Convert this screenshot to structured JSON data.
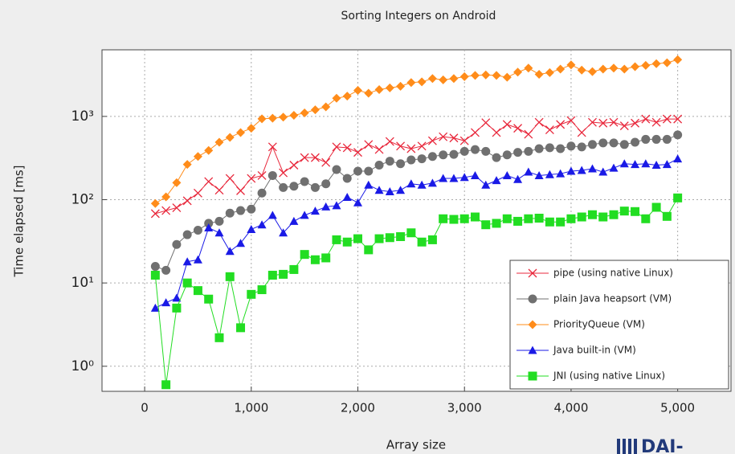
{
  "chart_data": {
    "type": "line",
    "title": "Sorting Integers on Android",
    "xlabel": "Array size",
    "ylabel": "Time elapsed [ms]",
    "log_y": true,
    "grid": true,
    "legend": "lower right",
    "logo": "DAI-",
    "x": [
      100,
      200,
      300,
      400,
      500,
      600,
      700,
      800,
      900,
      1000,
      1100,
      1200,
      1300,
      1400,
      1500,
      1600,
      1700,
      1800,
      1900,
      2000,
      2100,
      2200,
      2300,
      2400,
      2500,
      2600,
      2700,
      2800,
      2900,
      3000,
      3100,
      3200,
      3300,
      3400,
      3500,
      3600,
      3700,
      3800,
      3900,
      4000,
      4100,
      4200,
      4300,
      4400,
      4500,
      4600,
      4700,
      4800,
      4900,
      5000
    ],
    "xlim": [
      -400,
      5500
    ],
    "xticks": [
      0,
      {
        "value": 1000,
        "label": "1,000"
      },
      {
        "value": 2000,
        "label": "2,000"
      },
      {
        "value": 3000,
        "label": "3,000"
      },
      {
        "value": 4000,
        "label": "4,000"
      },
      {
        "value": 5000,
        "label": "5,000"
      }
    ],
    "ylim": [
      0.5,
      6300
    ],
    "yticks": [
      {
        "value": 1,
        "label": "10⁰"
      },
      {
        "value": 10,
        "label": "10¹"
      },
      {
        "value": 100,
        "label": "10²"
      },
      {
        "value": 1000,
        "label": "10³"
      }
    ],
    "series": [
      {
        "name": "pipe (using native Linux)",
        "color": "#e8283c",
        "marker": "x",
        "values": [
          68,
          74,
          80,
          97,
          120,
          165,
          130,
          180,
          128,
          180,
          195,
          430,
          210,
          260,
          320,
          320,
          280,
          430,
          420,
          370,
          460,
          400,
          500,
          440,
          410,
          440,
          510,
          570,
          550,
          510,
          640,
          840,
          640,
          800,
          720,
          610,
          850,
          690,
          800,
          890,
          640,
          850,
          830,
          850,
          770,
          830,
          930,
          850,
          930,
          930
        ]
      },
      {
        "name": "plain Java heapsort (VM)",
        "color": "#707070",
        "marker": "o",
        "values": [
          15.8,
          14.2,
          29,
          38,
          43,
          52,
          55,
          69,
          74,
          77,
          120,
          195,
          140,
          145,
          165,
          140,
          155,
          230,
          180,
          220,
          220,
          260,
          290,
          270,
          300,
          310,
          330,
          345,
          350,
          380,
          400,
          380,
          320,
          345,
          370,
          380,
          410,
          420,
          410,
          440,
          430,
          460,
          480,
          480,
          460,
          490,
          530,
          530,
          530,
          600
        ]
      },
      {
        "name": "PriorityQueue (VM)",
        "color": "#ff8c1a",
        "marker": "D",
        "values": [
          90,
          108,
          160,
          265,
          330,
          390,
          490,
          560,
          640,
          720,
          935,
          950,
          980,
          1030,
          1100,
          1200,
          1300,
          1650,
          1750,
          2050,
          1900,
          2100,
          2200,
          2300,
          2550,
          2600,
          2850,
          2750,
          2850,
          3000,
          3100,
          3150,
          3100,
          2950,
          3400,
          3800,
          3200,
          3350,
          3700,
          4150,
          3600,
          3450,
          3700,
          3800,
          3700,
          3950,
          4100,
          4300,
          4400,
          4800
        ]
      },
      {
        "name": "Java built-in (VM)",
        "color": "#1a1ae6",
        "marker": "^",
        "values": [
          5,
          5.8,
          6.6,
          18,
          19,
          46,
          40,
          24,
          30,
          44,
          50,
          65,
          40,
          55,
          65,
          73,
          82,
          85,
          107,
          92,
          150,
          130,
          125,
          130,
          155,
          150,
          158,
          180,
          180,
          185,
          195,
          150,
          170,
          195,
          175,
          215,
          195,
          200,
          205,
          220,
          225,
          235,
          215,
          240,
          270,
          265,
          270,
          260,
          265,
          310
        ]
      },
      {
        "name": "JNI (using native Linux)",
        "color": "#22dd22",
        "marker": "s",
        "values": [
          12.4,
          0.6,
          5,
          10,
          8.1,
          6.4,
          2.2,
          11.9,
          2.9,
          7.3,
          8.3,
          12.4,
          12.7,
          14.5,
          22,
          19,
          20,
          33,
          31,
          34,
          25,
          34,
          35,
          36,
          40,
          31,
          33,
          59,
          58,
          59,
          62,
          50,
          52,
          59,
          55,
          59,
          60,
          54,
          54,
          59,
          62,
          66,
          62,
          66,
          73,
          72,
          59,
          81,
          63,
          105
        ]
      }
    ]
  }
}
